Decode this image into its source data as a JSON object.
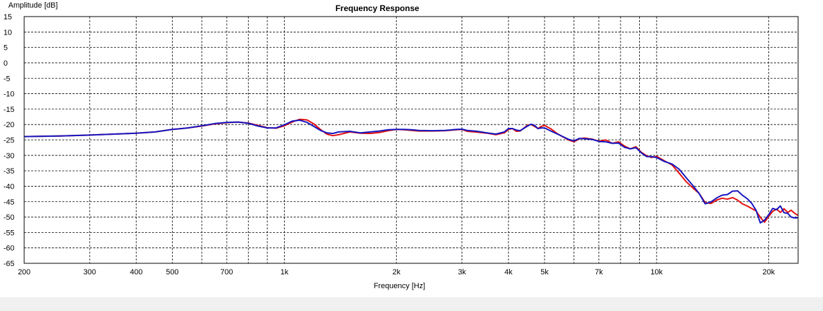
{
  "chart_data": {
    "type": "line",
    "title": "Frequency Response",
    "xlabel": "Frequency [Hz]",
    "ylabel": "Amplitude [dB]",
    "xscale": "log",
    "xlim": [
      200,
      24000
    ],
    "ylim": [
      -65,
      15
    ],
    "grid": true,
    "x_ticks": [
      {
        "value": 200,
        "label": "200"
      },
      {
        "value": 300,
        "label": "300"
      },
      {
        "value": 400,
        "label": "400"
      },
      {
        "value": 500,
        "label": "500"
      },
      {
        "value": 700,
        "label": "700"
      },
      {
        "value": 1000,
        "label": "1k"
      },
      {
        "value": 2000,
        "label": "2k"
      },
      {
        "value": 3000,
        "label": "3k"
      },
      {
        "value": 4000,
        "label": "4k"
      },
      {
        "value": 5000,
        "label": "5k"
      },
      {
        "value": 7000,
        "label": "7k"
      },
      {
        "value": 10000,
        "label": "10k"
      },
      {
        "value": 20000,
        "label": "20k"
      }
    ],
    "x_minor_gridlines": [
      600,
      800,
      900,
      6000,
      8000,
      9000
    ],
    "y_ticks": [
      15,
      10,
      5,
      0,
      -5,
      -10,
      -15,
      -20,
      -25,
      -30,
      -35,
      -40,
      -45,
      -50,
      -55,
      -60,
      -65
    ],
    "series": [
      {
        "color": "#e01010",
        "points": [
          [
            200,
            -23.9
          ],
          [
            250,
            -23.7
          ],
          [
            300,
            -23.4
          ],
          [
            350,
            -23.1
          ],
          [
            400,
            -22.8
          ],
          [
            450,
            -22.4
          ],
          [
            500,
            -21.6
          ],
          [
            550,
            -21.1
          ],
          [
            600,
            -20.5
          ],
          [
            650,
            -19.8
          ],
          [
            700,
            -19.4
          ],
          [
            750,
            -19.2
          ],
          [
            800,
            -19.5
          ],
          [
            850,
            -20.3
          ],
          [
            900,
            -21.0
          ],
          [
            950,
            -21.2
          ],
          [
            1000,
            -20.4
          ],
          [
            1050,
            -19.2
          ],
          [
            1100,
            -18.3
          ],
          [
            1150,
            -18.5
          ],
          [
            1200,
            -19.8
          ],
          [
            1250,
            -21.6
          ],
          [
            1300,
            -23.1
          ],
          [
            1350,
            -23.6
          ],
          [
            1400,
            -23.3
          ],
          [
            1500,
            -22.4
          ],
          [
            1600,
            -22.8
          ],
          [
            1700,
            -22.9
          ],
          [
            1800,
            -22.6
          ],
          [
            1900,
            -22.0
          ],
          [
            2000,
            -21.6
          ],
          [
            2100,
            -21.7
          ],
          [
            2200,
            -21.9
          ],
          [
            2300,
            -22.1
          ],
          [
            2500,
            -22.1
          ],
          [
            2700,
            -22.0
          ],
          [
            2900,
            -21.7
          ],
          [
            3000,
            -21.6
          ],
          [
            3100,
            -22.2
          ],
          [
            3300,
            -22.5
          ],
          [
            3500,
            -22.8
          ],
          [
            3700,
            -23.3
          ],
          [
            3900,
            -22.7
          ],
          [
            4000,
            -21.6
          ],
          [
            4100,
            -21.3
          ],
          [
            4200,
            -22.2
          ],
          [
            4300,
            -22.1
          ],
          [
            4500,
            -20.2
          ],
          [
            4600,
            -20.0
          ],
          [
            4700,
            -20.6
          ],
          [
            4800,
            -21.3
          ],
          [
            4900,
            -20.6
          ],
          [
            5000,
            -20.3
          ],
          [
            5200,
            -21.4
          ],
          [
            5400,
            -22.9
          ],
          [
            5600,
            -24.0
          ],
          [
            5800,
            -25.0
          ],
          [
            6000,
            -25.6
          ],
          [
            6200,
            -24.6
          ],
          [
            6400,
            -24.4
          ],
          [
            6700,
            -24.7
          ],
          [
            7000,
            -25.4
          ],
          [
            7300,
            -25.0
          ],
          [
            7600,
            -26.1
          ],
          [
            7900,
            -25.6
          ],
          [
            8200,
            -27.0
          ],
          [
            8500,
            -27.9
          ],
          [
            8800,
            -27.2
          ],
          [
            9100,
            -29.0
          ],
          [
            9400,
            -30.1
          ],
          [
            9700,
            -30.7
          ],
          [
            10000,
            -30.3
          ],
          [
            10500,
            -31.8
          ],
          [
            11000,
            -33.1
          ],
          [
            11500,
            -35.8
          ],
          [
            12000,
            -38.5
          ],
          [
            12500,
            -40.5
          ],
          [
            13000,
            -42.3
          ],
          [
            13500,
            -45.3
          ],
          [
            14000,
            -45.6
          ],
          [
            14500,
            -44.5
          ],
          [
            15000,
            -43.9
          ],
          [
            15500,
            -44.2
          ],
          [
            16000,
            -43.7
          ],
          [
            16500,
            -44.5
          ],
          [
            17000,
            -45.7
          ],
          [
            17500,
            -46.4
          ],
          [
            18000,
            -47.2
          ],
          [
            18500,
            -48.0
          ],
          [
            19000,
            -50.1
          ],
          [
            19500,
            -51.7
          ],
          [
            20000,
            -49.8
          ],
          [
            20500,
            -48.2
          ],
          [
            21000,
            -47.4
          ],
          [
            21500,
            -48.5
          ],
          [
            22000,
            -47.3
          ],
          [
            22500,
            -48.5
          ],
          [
            23000,
            -47.8
          ],
          [
            23500,
            -48.8
          ],
          [
            24000,
            -49.5
          ]
        ]
      },
      {
        "color": "#1515c0",
        "points": [
          [
            200,
            -23.9
          ],
          [
            250,
            -23.7
          ],
          [
            300,
            -23.4
          ],
          [
            350,
            -23.1
          ],
          [
            400,
            -22.8
          ],
          [
            450,
            -22.4
          ],
          [
            500,
            -21.6
          ],
          [
            550,
            -21.1
          ],
          [
            600,
            -20.4
          ],
          [
            650,
            -19.7
          ],
          [
            700,
            -19.3
          ],
          [
            750,
            -19.2
          ],
          [
            800,
            -19.6
          ],
          [
            850,
            -20.5
          ],
          [
            900,
            -21.1
          ],
          [
            950,
            -21.1
          ],
          [
            1000,
            -20.1
          ],
          [
            1050,
            -18.9
          ],
          [
            1100,
            -18.6
          ],
          [
            1150,
            -19.3
          ],
          [
            1200,
            -20.6
          ],
          [
            1250,
            -21.9
          ],
          [
            1300,
            -22.7
          ],
          [
            1350,
            -22.9
          ],
          [
            1400,
            -22.4
          ],
          [
            1500,
            -22.2
          ],
          [
            1600,
            -22.7
          ],
          [
            1700,
            -22.4
          ],
          [
            1800,
            -22.1
          ],
          [
            1900,
            -21.7
          ],
          [
            2000,
            -21.6
          ],
          [
            2100,
            -21.6
          ],
          [
            2200,
            -21.7
          ],
          [
            2300,
            -21.9
          ],
          [
            2500,
            -22.0
          ],
          [
            2700,
            -21.9
          ],
          [
            2900,
            -21.6
          ],
          [
            3000,
            -21.5
          ],
          [
            3100,
            -21.9
          ],
          [
            3300,
            -22.2
          ],
          [
            3500,
            -22.7
          ],
          [
            3700,
            -23.1
          ],
          [
            3900,
            -22.4
          ],
          [
            4000,
            -21.3
          ],
          [
            4100,
            -21.3
          ],
          [
            4200,
            -21.8
          ],
          [
            4300,
            -22.0
          ],
          [
            4500,
            -20.5
          ],
          [
            4600,
            -19.9
          ],
          [
            4700,
            -20.3
          ],
          [
            4800,
            -21.3
          ],
          [
            4900,
            -21.1
          ],
          [
            5000,
            -21.1
          ],
          [
            5200,
            -22.1
          ],
          [
            5400,
            -23.0
          ],
          [
            5600,
            -23.9
          ],
          [
            5800,
            -24.8
          ],
          [
            6000,
            -25.3
          ],
          [
            6200,
            -24.5
          ],
          [
            6400,
            -24.6
          ],
          [
            6700,
            -24.8
          ],
          [
            7000,
            -25.5
          ],
          [
            7300,
            -25.6
          ],
          [
            7600,
            -26.1
          ],
          [
            7900,
            -26.0
          ],
          [
            8200,
            -27.4
          ],
          [
            8500,
            -27.9
          ],
          [
            8800,
            -27.5
          ],
          [
            9100,
            -29.2
          ],
          [
            9400,
            -30.4
          ],
          [
            9700,
            -30.4
          ],
          [
            10000,
            -30.7
          ],
          [
            10500,
            -32.0
          ],
          [
            11000,
            -32.8
          ],
          [
            11500,
            -34.5
          ],
          [
            12000,
            -37.2
          ],
          [
            12500,
            -39.7
          ],
          [
            13000,
            -42.3
          ],
          [
            13500,
            -45.7
          ],
          [
            14000,
            -45.1
          ],
          [
            14500,
            -43.8
          ],
          [
            15000,
            -42.9
          ],
          [
            15500,
            -42.7
          ],
          [
            16000,
            -41.6
          ],
          [
            16500,
            -41.5
          ],
          [
            17000,
            -42.9
          ],
          [
            17500,
            -44.0
          ],
          [
            18000,
            -45.5
          ],
          [
            18500,
            -47.8
          ],
          [
            19000,
            -51.9
          ],
          [
            19500,
            -51.0
          ],
          [
            20000,
            -49.3
          ],
          [
            20500,
            -47.2
          ],
          [
            21000,
            -47.6
          ],
          [
            21500,
            -46.4
          ],
          [
            22000,
            -48.6
          ],
          [
            22500,
            -48.8
          ],
          [
            23000,
            -50.0
          ],
          [
            23500,
            -50.3
          ],
          [
            24000,
            -50.2
          ]
        ]
      }
    ]
  }
}
